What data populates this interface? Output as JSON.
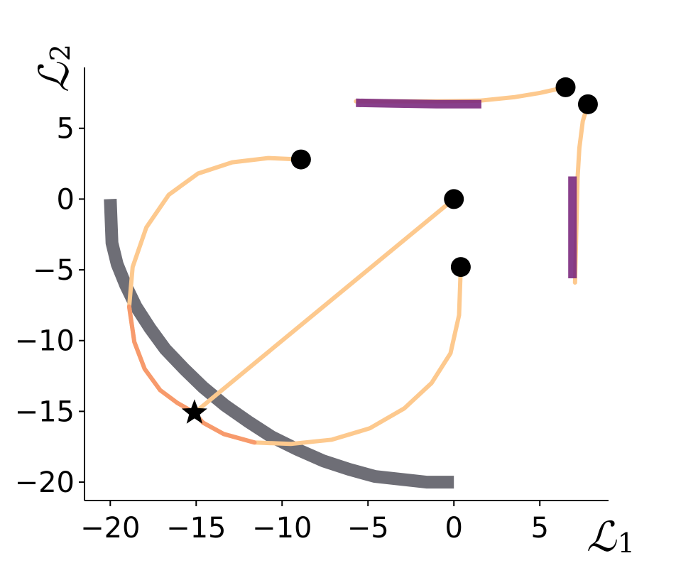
{
  "chart_data": {
    "type": "line",
    "title": "",
    "xlabel": "ℒ",
    "xlabel_sub": "1",
    "ylabel": "ℒ",
    "ylabel_sub": "2",
    "xlim": [
      -21.5,
      9
    ],
    "ylim": [
      -21.3,
      9.3
    ],
    "xticks": [
      -20,
      -15,
      -10,
      -5,
      0,
      5
    ],
    "yticks": [
      -20,
      -15,
      -10,
      -5,
      0,
      5
    ],
    "xtick_labels": [
      "−20",
      "−15",
      "−10",
      "−5",
      "0",
      "5"
    ],
    "ytick_labels": [
      "−20",
      "−15",
      "−10",
      "−5",
      "0",
      "5"
    ],
    "grid": false,
    "colors": {
      "pareto_front": "#6e6e76",
      "trajectory_light": "#fdc98e",
      "trajectory_mid": "#f79a6c",
      "trajectory_dark": "#b83c78",
      "trajectory_darkest": "#7b2a7e",
      "markers": "#000000"
    },
    "pareto_front": {
      "name": "pareto-front",
      "x": [
        -20,
        -19.9,
        -19.6,
        -19.1,
        -18.5,
        -17.7,
        -16.8,
        -15.7,
        -14.6,
        -13.3,
        -12.0,
        -10.6,
        -9.1,
        -7.6,
        -6.1,
        -4.6,
        -3.1,
        -1.6,
        0
      ],
      "y": [
        0,
        -3.1,
        -4.6,
        -6.1,
        -7.6,
        -9.1,
        -10.6,
        -12.0,
        -13.3,
        -14.6,
        -15.7,
        -16.8,
        -17.7,
        -18.5,
        -19.1,
        -19.6,
        -19.8,
        -20.0,
        -20.0
      ]
    },
    "optimum": {
      "name": "optimum-star",
      "x": -15.1,
      "y": -15.1
    },
    "start_points": [
      {
        "name": "start-a",
        "x": -8.9,
        "y": 2.8
      },
      {
        "name": "start-b",
        "x": 0.0,
        "y": 0.0
      },
      {
        "name": "start-c",
        "x": 0.4,
        "y": -4.8
      },
      {
        "name": "start-d",
        "x": 6.5,
        "y": 7.9
      },
      {
        "name": "start-e",
        "x": 7.8,
        "y": 6.7
      }
    ],
    "series": [
      {
        "name": "",
        "color_key": "trajectory_light",
        "x": [
          -8.9,
          -10.8,
          -12.9,
          -14.9,
          -16.6,
          -17.9,
          -18.7,
          -18.9,
          -18.6,
          -18.0,
          -17.1,
          -16.1,
          -15.1
        ],
        "y": [
          2.8,
          2.9,
          2.6,
          1.8,
          0.3,
          -2.0,
          -4.8,
          -7.6,
          -10.1,
          -12.0,
          -13.5,
          -14.4,
          -15.1
        ]
      },
      {
        "name": "",
        "color_key": "trajectory_light",
        "x": [
          0.0,
          -15.1
        ],
        "y": [
          0.0,
          -15.1
        ]
      },
      {
        "name": "",
        "color_key": "trajectory_light",
        "x": [
          0.4,
          0.3,
          -0.2,
          -1.3,
          -2.9,
          -4.9,
          -7.1,
          -9.5,
          -11.6,
          -13.4,
          -14.6,
          -15.1
        ],
        "y": [
          -4.8,
          -8.2,
          -10.9,
          -13.0,
          -14.8,
          -16.2,
          -17.0,
          -17.3,
          -17.2,
          -16.6,
          -15.8,
          -15.1
        ]
      },
      {
        "name": "",
        "color_key": "trajectory_light",
        "x": [
          6.5,
          5.0,
          3.5,
          1.5,
          -1.0,
          -3.5,
          -5.7
        ],
        "y": [
          7.9,
          7.5,
          7.2,
          6.95,
          6.9,
          6.9,
          6.9
        ]
      },
      {
        "name": "",
        "color_key": "trajectory_light",
        "x": [
          7.8,
          7.5,
          7.3,
          7.2,
          7.15,
          7.1,
          7.05
        ],
        "y": [
          6.7,
          5.5,
          3.6,
          1.5,
          -1.0,
          -3.5,
          -5.9
        ]
      },
      {
        "name": "",
        "color_key": "trajectory_darkest",
        "x": [
          -5.7,
          -3.5,
          -1.0,
          1.6
        ],
        "y": [
          6.8,
          6.75,
          6.7,
          6.7
        ]
      },
      {
        "name": "",
        "color_key": "trajectory_darkest",
        "x": [
          6.9,
          6.9,
          6.9
        ],
        "y": [
          1.6,
          -2.0,
          -5.6
        ]
      }
    ]
  }
}
